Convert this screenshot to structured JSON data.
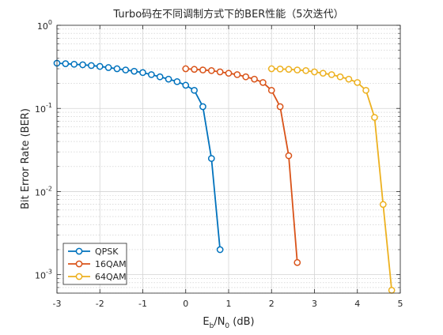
{
  "chart_data": {
    "type": "line",
    "title": "Turbo码在不同调制方式下的BER性能（5次迭代）",
    "xlabel": {
      "base": "E",
      "sub1": "b",
      "mid": "/N",
      "sub2": "0",
      "tail": " (dB)"
    },
    "ylabel": "Bit Error Rate (BER)",
    "x_scale": "linear",
    "y_scale": "log",
    "xlim": [
      -3,
      5
    ],
    "ylim": [
      0.0006,
      1
    ],
    "x_ticks": [
      -3,
      -2,
      -1,
      0,
      1,
      2,
      3,
      4,
      5
    ],
    "x_tick_labels": [
      "-3",
      "-2",
      "-1",
      "0",
      "1",
      "2",
      "3",
      "4",
      "5"
    ],
    "y_ticks": [
      {
        "value": 0.001,
        "base": "10",
        "exp": "-3"
      },
      {
        "value": 0.01,
        "base": "10",
        "exp": "-2"
      },
      {
        "value": 0.1,
        "base": "10",
        "exp": "-1"
      },
      {
        "value": 1,
        "base": "10",
        "exp": "0"
      }
    ],
    "grid": true,
    "minor_grid": true,
    "legend_position": "bottom-left",
    "series": [
      {
        "name": "QPSK",
        "color": "#0072BD",
        "marker": "circle",
        "x": [
          -3.0,
          -2.8,
          -2.6,
          -2.4,
          -2.2,
          -2.0,
          -1.8,
          -1.6,
          -1.4,
          -1.2,
          -1.0,
          -0.8,
          -0.6,
          -0.4,
          -0.2,
          0.0,
          0.2,
          0.4,
          0.6,
          0.8
        ],
        "y": [
          0.35,
          0.345,
          0.34,
          0.335,
          0.328,
          0.32,
          0.31,
          0.3,
          0.29,
          0.28,
          0.27,
          0.255,
          0.24,
          0.225,
          0.21,
          0.19,
          0.165,
          0.105,
          0.025,
          0.002
        ]
      },
      {
        "name": "16QAM",
        "color": "#D95319",
        "marker": "circle",
        "x": [
          0.0,
          0.2,
          0.4,
          0.6,
          0.8,
          1.0,
          1.2,
          1.4,
          1.6,
          1.8,
          2.0,
          2.2,
          2.4,
          2.6
        ],
        "y": [
          0.3,
          0.295,
          0.29,
          0.285,
          0.275,
          0.265,
          0.255,
          0.24,
          0.225,
          0.205,
          0.165,
          0.105,
          0.027,
          0.0014
        ]
      },
      {
        "name": "64QAM",
        "color": "#EDB120",
        "marker": "circle",
        "x": [
          2.0,
          2.2,
          2.4,
          2.6,
          2.8,
          3.0,
          3.2,
          3.4,
          3.6,
          3.8,
          4.0,
          4.2,
          4.4,
          4.6,
          4.8
        ],
        "y": [
          0.3,
          0.298,
          0.295,
          0.29,
          0.285,
          0.275,
          0.265,
          0.255,
          0.24,
          0.225,
          0.205,
          0.165,
          0.078,
          0.007,
          0.00065
        ]
      }
    ]
  }
}
